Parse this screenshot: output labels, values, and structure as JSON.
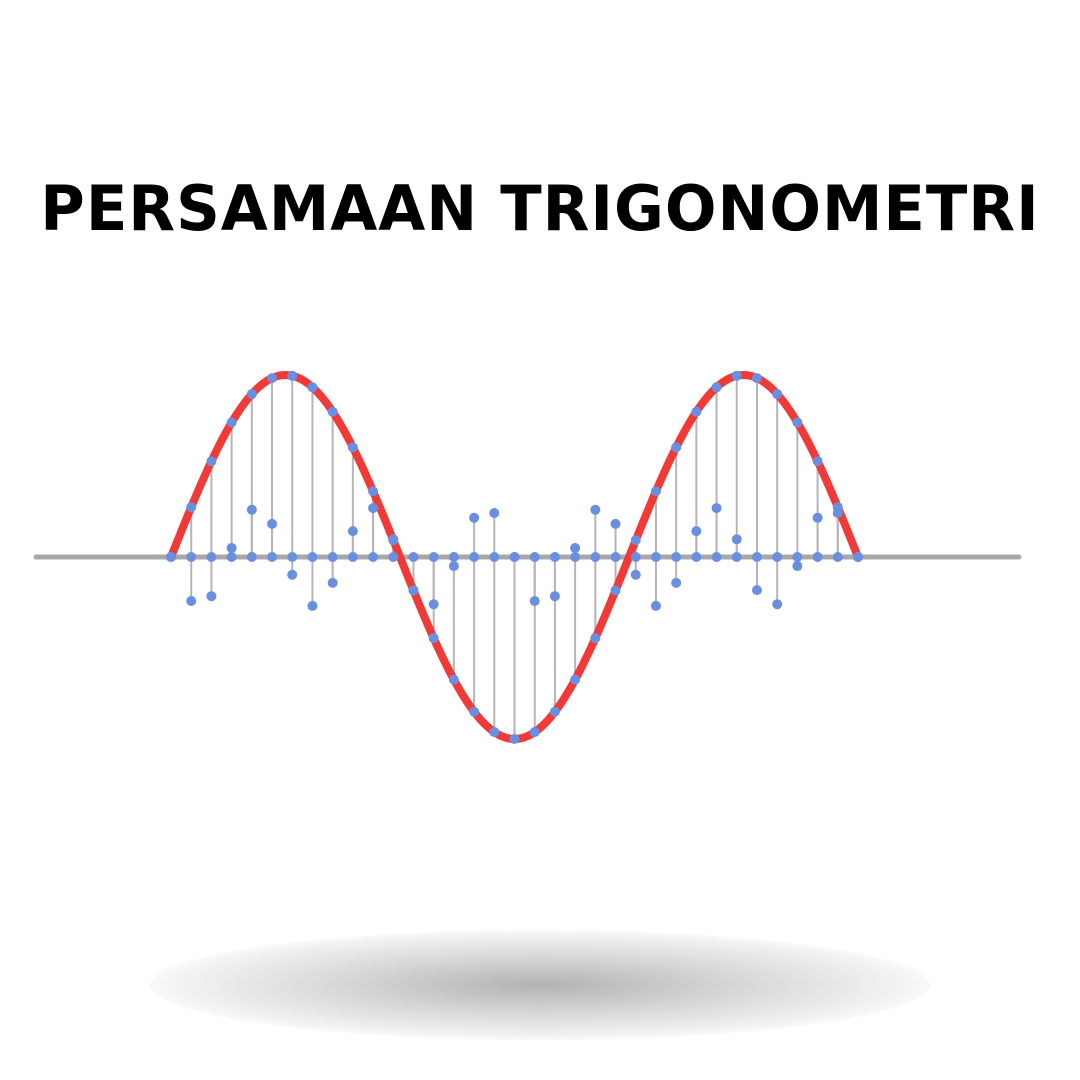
{
  "title": "PERSAMAAN TRIGONOMETRI",
  "colors": {
    "background": "#ffffff",
    "title": "#000000",
    "main_curve": "#f03a37",
    "samples": "#6a8fe0",
    "stems": "#b5b5b5",
    "axis": "#a8a8a8"
  },
  "wave": {
    "main_curve": {
      "function": "sine",
      "periods": 1.5,
      "amplitude": 1
    },
    "secondary_samples": {
      "function": "sine",
      "periods": 6,
      "amplitude": 0.27
    },
    "sample_count": 35,
    "has_stems": true,
    "has_shadow": true
  }
}
